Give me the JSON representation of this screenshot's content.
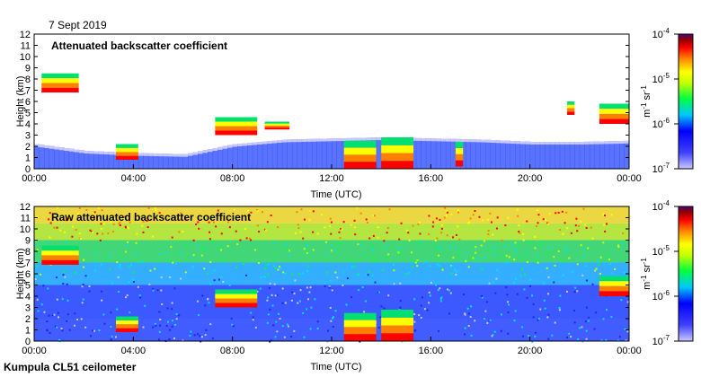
{
  "date_label": "7 Sept 2019",
  "footer": "Kumpula CL51 ceilometer",
  "colors": {
    "cmap": [
      "#c8c8ff",
      "#2020ff",
      "#00e0ff",
      "#00ff40",
      "#c8ff00",
      "#ffff00",
      "#ff8000",
      "#ff0000",
      "#8b0000",
      "#500080"
    ]
  },
  "chart_data": [
    {
      "type": "heatmap",
      "title": "Attenuated backscatter coefficient",
      "xlabel": "Time (UTC)",
      "ylabel": "Height (km)",
      "xlim": [
        0,
        24
      ],
      "ylim": [
        0,
        12
      ],
      "x_tick_labels": [
        "00:00",
        "04:00",
        "08:00",
        "12:00",
        "16:00",
        "20:00",
        "00:00"
      ],
      "y_tick_labels": [
        "0",
        "1",
        "2",
        "3",
        "4",
        "5",
        "6",
        "7",
        "8",
        "9",
        "10",
        "11",
        "12"
      ],
      "colorbar": {
        "scale": "log",
        "range": [
          1e-07,
          0.0001
        ],
        "tick_labels": [
          "10^-7",
          "10^-6",
          "10^-5",
          "10^-4"
        ],
        "unit": "m-1 sr-1"
      },
      "features": [
        {
          "type": "boundary_layer",
          "time": [
            0,
            24
          ],
          "top_km": [
            2.2,
            1.6,
            1.4,
            1.3,
            2.2,
            2.6,
            2.7,
            2.8,
            2.7,
            2.6,
            2.4,
            2.4,
            2.5
          ]
        },
        {
          "type": "cloud",
          "time": [
            0.3,
            1.8
          ],
          "height_km": [
            6.8,
            8.5
          ]
        },
        {
          "type": "cloud",
          "time": [
            3.3,
            4.2
          ],
          "height_km": [
            0.8,
            2.2
          ]
        },
        {
          "type": "cloud",
          "time": [
            7.3,
            9.0
          ],
          "height_km": [
            3.0,
            4.6
          ]
        },
        {
          "type": "cloud",
          "time": [
            9.3,
            10.3
          ],
          "height_km": [
            3.5,
            4.2
          ]
        },
        {
          "type": "cloud",
          "time": [
            12.5,
            13.8
          ],
          "height_km": [
            0.0,
            2.5
          ]
        },
        {
          "type": "cloud",
          "time": [
            14.0,
            15.3
          ],
          "height_km": [
            0.0,
            2.8
          ]
        },
        {
          "type": "cloud",
          "time": [
            17.0,
            17.3
          ],
          "height_km": [
            0.2,
            2.4
          ]
        },
        {
          "type": "cloud",
          "time": [
            21.5,
            21.8
          ],
          "height_km": [
            4.8,
            6.0
          ]
        },
        {
          "type": "cloud",
          "time": [
            22.8,
            24.0
          ],
          "height_km": [
            4.0,
            5.8
          ]
        }
      ]
    },
    {
      "type": "heatmap",
      "title": "Raw attenuated backscatter coefficient",
      "xlabel": "Time (UTC)",
      "ylabel": "Height (km)",
      "xlim": [
        0,
        24
      ],
      "ylim": [
        0,
        12
      ],
      "x_tick_labels": [
        "00:00",
        "04:00",
        "08:00",
        "12:00",
        "16:00",
        "20:00",
        "00:00"
      ],
      "y_tick_labels": [
        "0",
        "1",
        "2",
        "3",
        "4",
        "5",
        "6",
        "7",
        "8",
        "9",
        "10",
        "11",
        "12"
      ],
      "colorbar": {
        "scale": "log",
        "range": [
          1e-07,
          0.0001
        ],
        "tick_labels": [
          "10^-7",
          "10^-6",
          "10^-5",
          "10^-4"
        ],
        "unit": "m-1 sr-1"
      },
      "features": [
        {
          "type": "noise_floor",
          "description_level": "increasing with height"
        },
        {
          "type": "cloud",
          "time": [
            0.3,
            1.8
          ],
          "height_km": [
            6.8,
            8.5
          ]
        },
        {
          "type": "cloud",
          "time": [
            3.3,
            4.2
          ],
          "height_km": [
            0.8,
            2.2
          ]
        },
        {
          "type": "cloud",
          "time": [
            7.3,
            9.0
          ],
          "height_km": [
            3.0,
            4.6
          ]
        },
        {
          "type": "cloud",
          "time": [
            12.5,
            13.8
          ],
          "height_km": [
            0.0,
            2.5
          ]
        },
        {
          "type": "cloud",
          "time": [
            14.0,
            15.3
          ],
          "height_km": [
            0.0,
            2.8
          ]
        },
        {
          "type": "cloud",
          "time": [
            22.8,
            24.0
          ],
          "height_km": [
            4.0,
            5.8
          ]
        }
      ]
    }
  ]
}
